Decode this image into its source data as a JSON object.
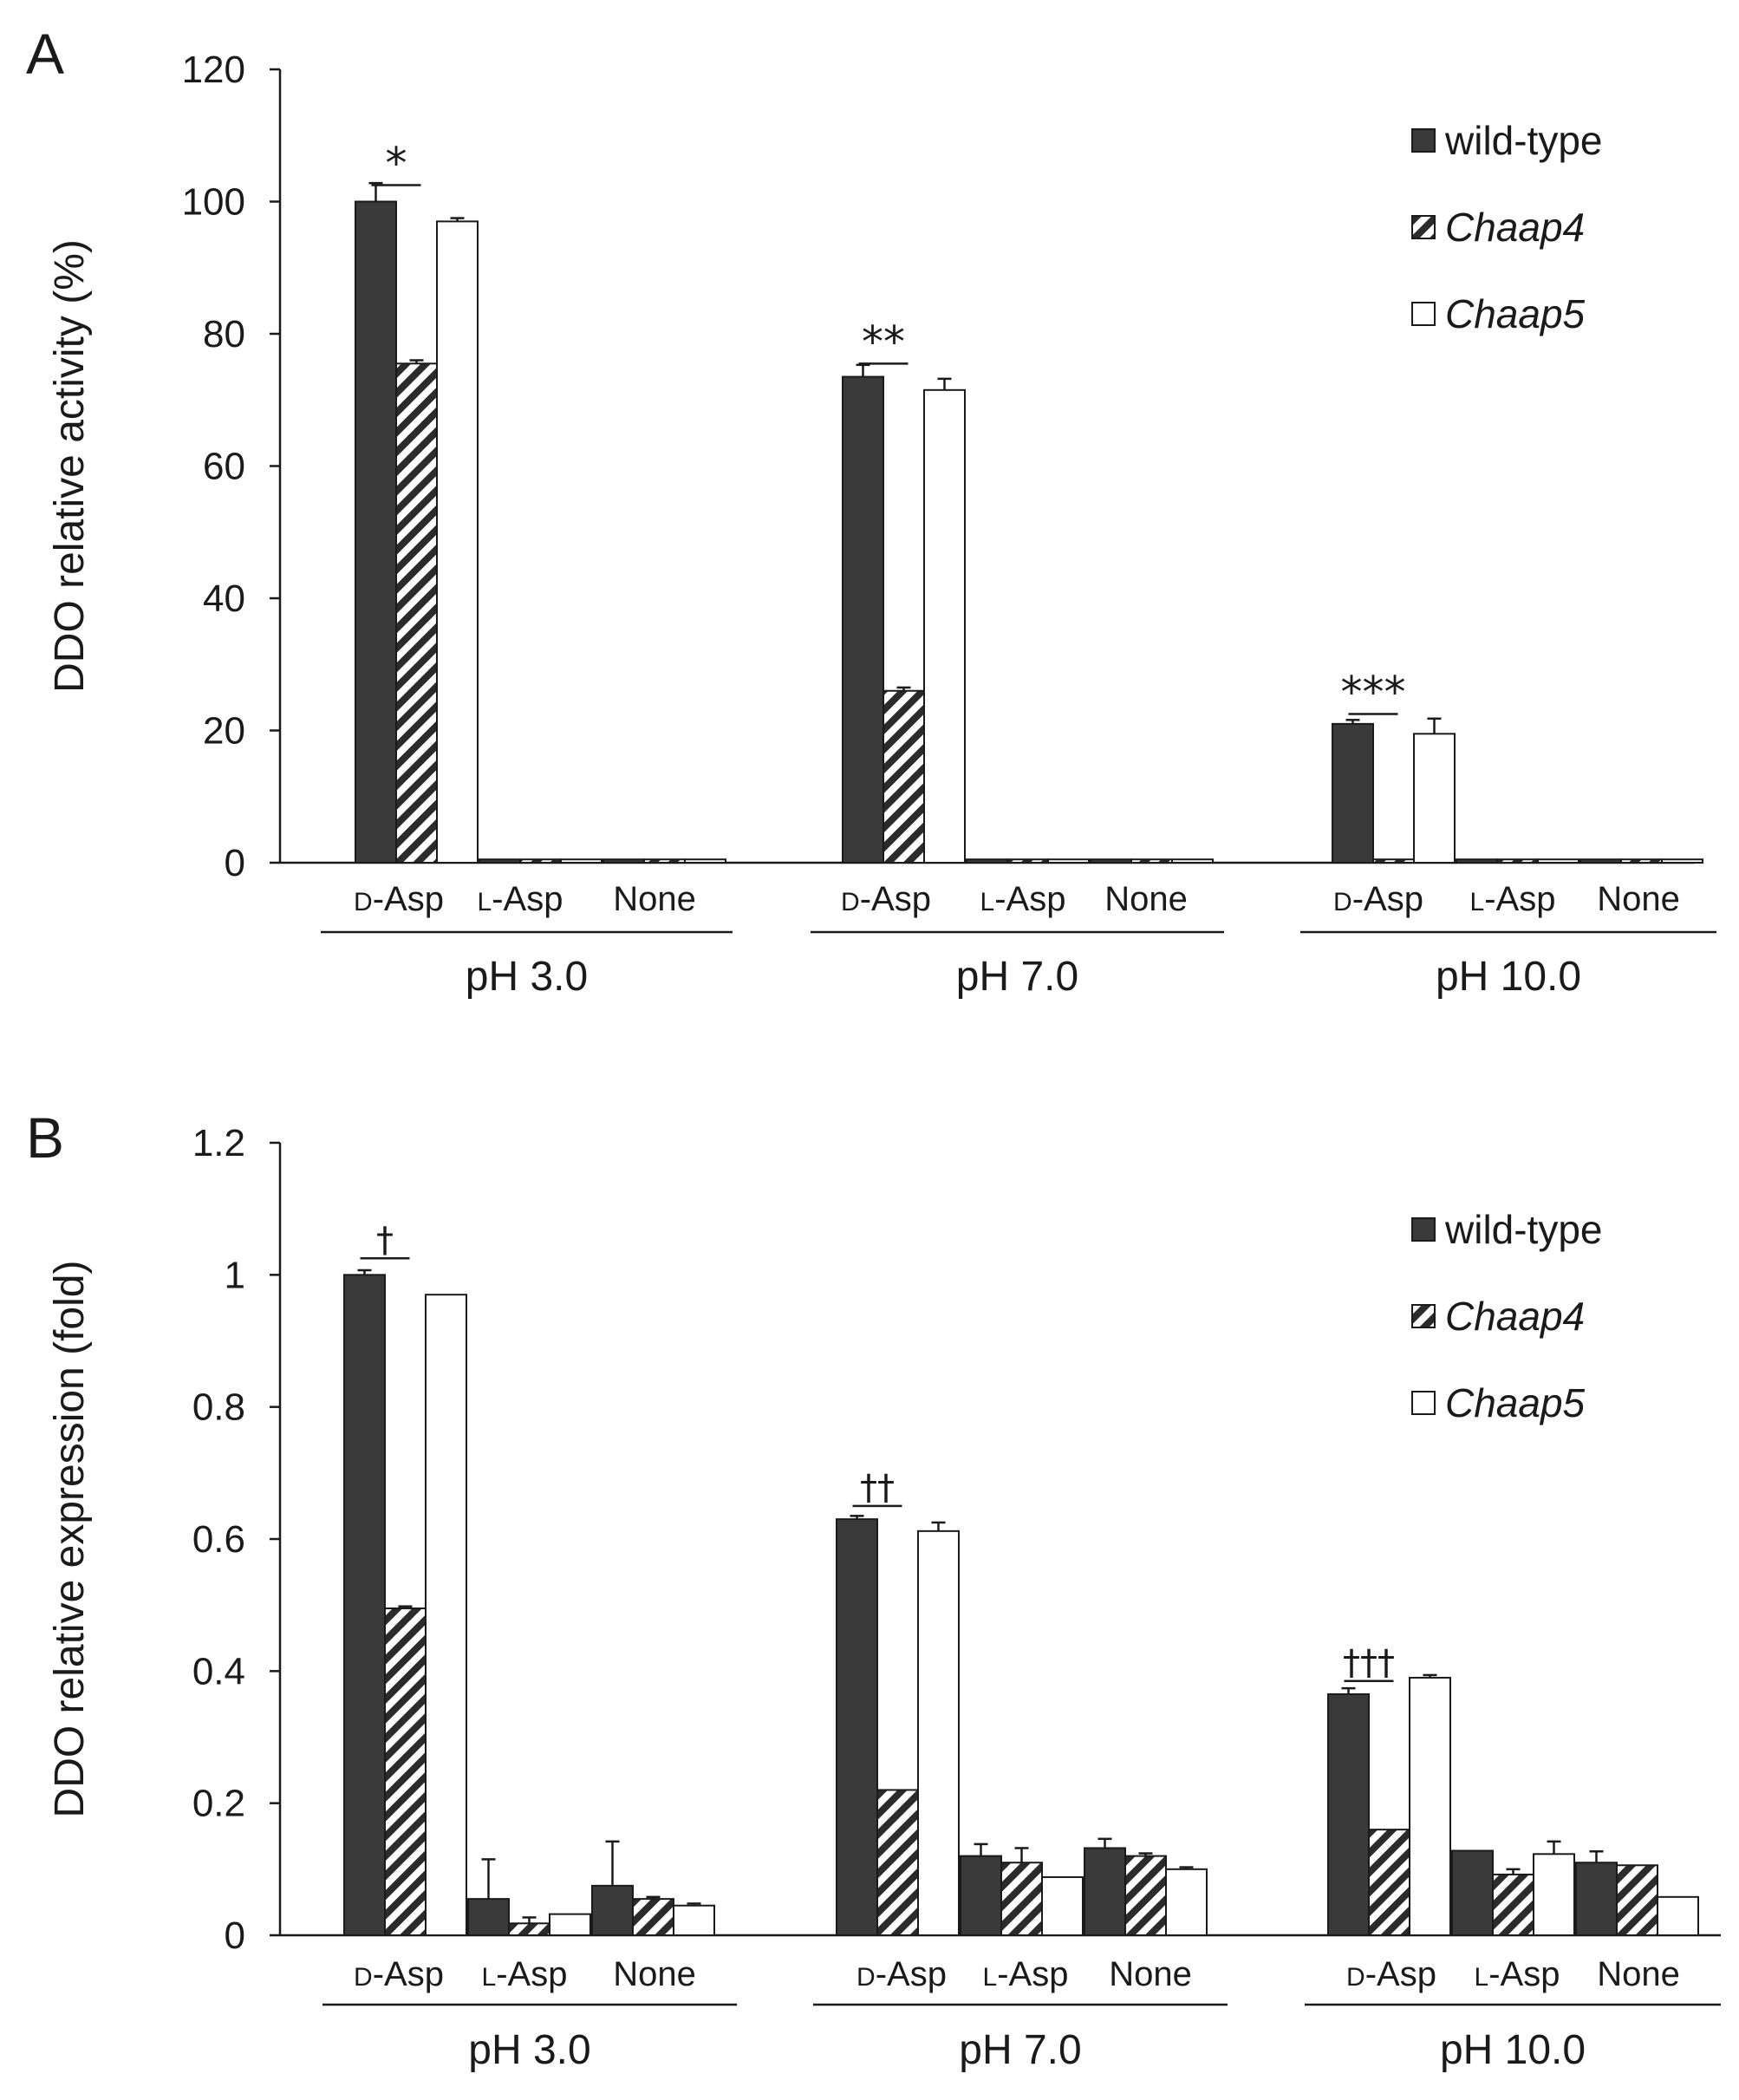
{
  "figure": {
    "colors": {
      "wild_type": "#3a3a3a",
      "chaap4": "hatch",
      "chaap5": "#ffffff",
      "ink": "#1a1a1a"
    }
  },
  "chart_data": [
    {
      "panel": "A",
      "type": "bar",
      "ylabel": "DDO relative activity (%)",
      "ylim": [
        0,
        120
      ],
      "yticks": [
        0,
        20,
        40,
        60,
        80,
        100,
        120
      ],
      "ytick_labels": [
        "0",
        "20",
        "40",
        "60",
        "80",
        "100",
        "120"
      ],
      "groups": [
        "pH 3.0",
        "pH 7.0",
        "pH 10.0"
      ],
      "categories": [
        "D-Asp",
        "L-Asp",
        "None"
      ],
      "category_labels": [
        {
          "prefix": "D",
          "rest": "-Asp"
        },
        {
          "prefix": "L",
          "rest": "-Asp"
        },
        {
          "prefix": "",
          "rest": "None"
        }
      ],
      "legend": {
        "position": "top-right",
        "entries": [
          "wild-type",
          "Chaap4",
          "Chaap5"
        ]
      },
      "series": [
        {
          "name": "wild-type",
          "values": [
            [
              100,
              0.5,
              0.5
            ],
            [
              73.5,
              0.5,
              0.5
            ],
            [
              21,
              0.5,
              0.5
            ]
          ],
          "errors": [
            [
              2.8,
              0,
              0
            ],
            [
              1.8,
              0,
              0
            ],
            [
              0.6,
              0,
              0
            ]
          ]
        },
        {
          "name": "Chaap4",
          "values": [
            [
              75.5,
              0.5,
              0.5
            ],
            [
              26,
              0.5,
              0.5
            ],
            [
              0.5,
              0.5,
              0.5
            ]
          ],
          "errors": [
            [
              0.5,
              0,
              0
            ],
            [
              0.5,
              0,
              0
            ],
            [
              0,
              0,
              0
            ]
          ]
        },
        {
          "name": "Chaap5",
          "values": [
            [
              97,
              0.5,
              0.5
            ],
            [
              71.5,
              0.5,
              0.5
            ],
            [
              19.5,
              0.5,
              0.5
            ]
          ],
          "errors": [
            [
              0.5,
              0,
              0
            ],
            [
              1.7,
              0,
              0
            ],
            [
              2.3,
              0,
              0
            ]
          ]
        }
      ],
      "significance": [
        {
          "group": 0,
          "symbol": "*",
          "value": 102.5
        },
        {
          "group": 1,
          "symbol": "**",
          "value": 75.5
        },
        {
          "group": 2,
          "symbol": "***",
          "value": 22.5
        }
      ]
    },
    {
      "panel": "B",
      "type": "bar",
      "ylabel": "DDO relative expression (fold)",
      "ylim": [
        0,
        1.2
      ],
      "yticks": [
        0,
        0.2,
        0.4,
        0.6,
        0.8,
        1,
        1.2
      ],
      "ytick_labels": [
        "0",
        "0.2",
        "0.4",
        "0.6",
        "0.8",
        "1",
        "1.2"
      ],
      "groups": [
        "pH 3.0",
        "pH 7.0",
        "pH 10.0"
      ],
      "categories": [
        "D-Asp",
        "L-Asp",
        "None"
      ],
      "category_labels": [
        {
          "prefix": "D",
          "rest": "-Asp"
        },
        {
          "prefix": "L",
          "rest": "-Asp"
        },
        {
          "prefix": "",
          "rest": "None"
        }
      ],
      "legend": {
        "position": "top-right",
        "entries": [
          "wild-type",
          "Chaap4",
          "Chaap5"
        ]
      },
      "series": [
        {
          "name": "wild-type",
          "values": [
            [
              1.0,
              0.055,
              0.075
            ],
            [
              0.63,
              0.12,
              0.132
            ],
            [
              0.365,
              0.128,
              0.11
            ]
          ],
          "errors": [
            [
              0.007,
              0.06,
              0.067
            ],
            [
              0.005,
              0.018,
              0.014
            ],
            [
              0.009,
              0,
              0.017
            ]
          ]
        },
        {
          "name": "Chaap4",
          "values": [
            [
              0.495,
              0.018,
              0.055
            ],
            [
              0.22,
              0.11,
              0.12
            ],
            [
              0.16,
              0.092,
              0.106
            ]
          ],
          "errors": [
            [
              0.003,
              0.009,
              0.003
            ],
            [
              0,
              0.022,
              0.004
            ],
            [
              0,
              0.008,
              0
            ]
          ]
        },
        {
          "name": "Chaap5",
          "values": [
            [
              0.97,
              0.032,
              0.045
            ],
            [
              0.612,
              0.088,
              0.1
            ],
            [
              0.39,
              0.123,
              0.058
            ]
          ],
          "errors": [
            [
              0,
              0,
              0.003
            ],
            [
              0.013,
              0,
              0.003
            ],
            [
              0.004,
              0.019,
              0
            ]
          ]
        }
      ],
      "significance": [
        {
          "group": 0,
          "symbol": "†",
          "value": 1.025
        },
        {
          "group": 1,
          "symbol": "††",
          "value": 0.65
        },
        {
          "group": 2,
          "symbol": "†††",
          "value": 0.385
        }
      ]
    }
  ]
}
